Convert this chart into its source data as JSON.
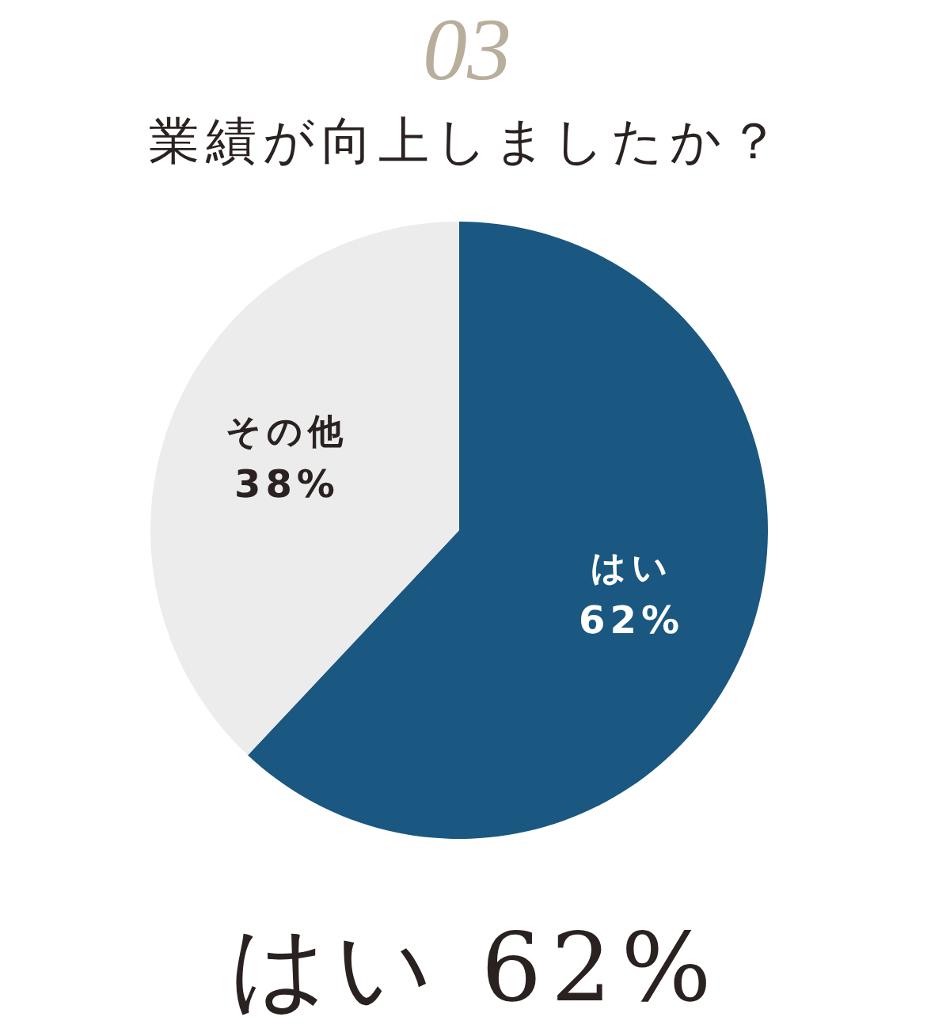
{
  "chart_data": {
    "type": "pie",
    "title": "業績が向上しましたか？",
    "categories": [
      "はい",
      "その他"
    ],
    "values": [
      62,
      38
    ],
    "value_labels": [
      "62%",
      "38%"
    ],
    "colors": [
      "#1a5781",
      "#ececec"
    ],
    "annotations": [
      "03",
      "はい 62%"
    ]
  }
}
